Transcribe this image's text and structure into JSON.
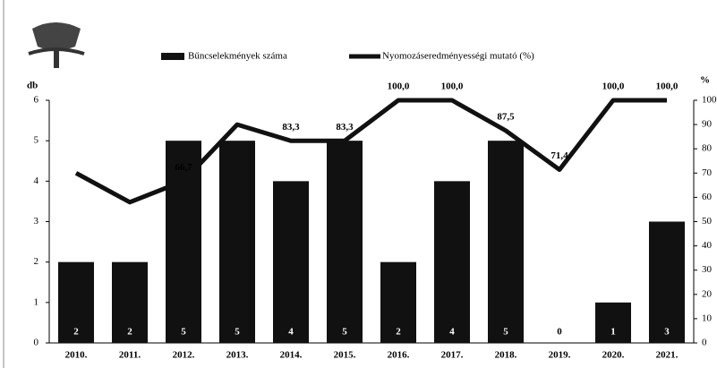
{
  "chart_data": {
    "type": "bar_line",
    "categories": [
      "2010.",
      "2011.",
      "2012.",
      "2013.",
      "2014.",
      "2015.",
      "2016.",
      "2017.",
      "2018.",
      "2019.",
      "2020.",
      "2021."
    ],
    "ylabel": "db",
    "y2label": "%",
    "ylim": [
      0,
      6
    ],
    "yticks": [
      0,
      1,
      2,
      3,
      4,
      5,
      6
    ],
    "y2lim": [
      0,
      100
    ],
    "y2ticks": [
      0,
      10,
      20,
      30,
      40,
      50,
      60,
      70,
      80,
      90,
      100
    ],
    "series": [
      {
        "name": "Bűncselekmények száma",
        "type": "bar",
        "color": "#111111",
        "values": [
          2,
          2,
          5,
          5,
          4,
          5,
          2,
          4,
          5,
          0,
          1,
          3
        ]
      },
      {
        "name": "Nyomozáseredményességi mutató (%)",
        "type": "line",
        "axis": "y2",
        "color": "#111111",
        "values": [
          70,
          58,
          66.7,
          90,
          83.3,
          83.3,
          100,
          100,
          87.5,
          71.4,
          100,
          100
        ],
        "value_labels": [
          null,
          null,
          "66,7",
          null,
          "83,3",
          "83,3",
          "100,0",
          "100,0",
          "87,5",
          "71,4",
          "100,0",
          "100,0"
        ]
      }
    ]
  }
}
